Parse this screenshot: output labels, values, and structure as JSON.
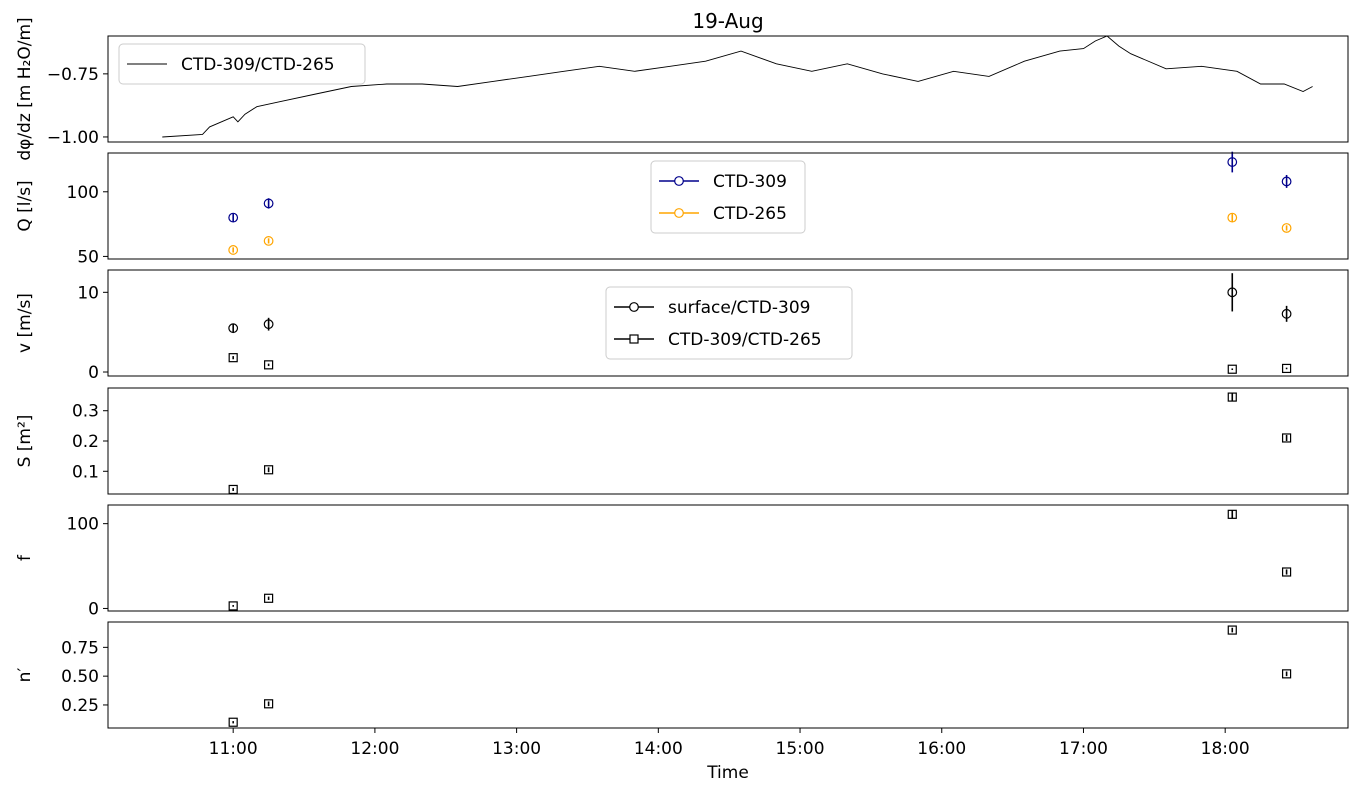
{
  "chart_data": {
    "title": "19-Aug",
    "xlabel": "Time",
    "x_ticks": [
      "11:00",
      "12:00",
      "13:00",
      "14:00",
      "15:00",
      "16:00",
      "17:00",
      "18:00"
    ],
    "xlim": [
      "10:07",
      "18:52"
    ],
    "panels": [
      {
        "id": "gradient",
        "type": "line",
        "ylabel": "dφ/dz [m H₂O/m]",
        "ylim": [
          -1.02,
          -0.6
        ],
        "yticks": [
          -1.0,
          -0.75
        ],
        "ytick_labels": [
          "−1.00",
          "−0.75"
        ],
        "legend_position": "upper-left",
        "series": [
          {
            "name": "CTD-309/CTD-265",
            "color": "#000000",
            "x": [
              "10:30",
              "10:47",
              "10:50",
              "11:00",
              "11:02",
              "11:05",
              "11:10",
              "11:20",
              "11:35",
              "11:50",
              "12:05",
              "12:20",
              "12:35",
              "12:50",
              "13:05",
              "13:20",
              "13:35",
              "13:50",
              "14:05",
              "14:20",
              "14:35",
              "14:50",
              "15:05",
              "15:20",
              "15:35",
              "15:50",
              "16:05",
              "16:20",
              "16:35",
              "16:50",
              "17:00",
              "17:05",
              "17:10",
              "17:15",
              "17:20",
              "17:35",
              "17:50",
              "18:05",
              "18:15",
              "18:25",
              "18:33",
              "18:37"
            ],
            "values": [
              -1.0,
              -0.99,
              -0.96,
              -0.92,
              -0.94,
              -0.91,
              -0.88,
              -0.86,
              -0.83,
              -0.8,
              -0.79,
              -0.79,
              -0.8,
              -0.78,
              -0.76,
              -0.74,
              -0.72,
              -0.74,
              -0.72,
              -0.7,
              -0.66,
              -0.71,
              -0.74,
              -0.71,
              -0.75,
              -0.78,
              -0.74,
              -0.76,
              -0.7,
              -0.66,
              -0.65,
              -0.62,
              -0.6,
              -0.64,
              -0.67,
              -0.73,
              -0.72,
              -0.74,
              -0.79,
              -0.79,
              -0.82,
              -0.8
            ]
          }
        ]
      },
      {
        "id": "discharge",
        "type": "errorbar",
        "ylabel": "Q [l/s]",
        "ylim": [
          48,
          130
        ],
        "yticks": [
          50,
          100
        ],
        "ytick_labels": [
          "50",
          "100"
        ],
        "legend_position": "upper-center",
        "series": [
          {
            "name": "CTD-309",
            "color": "#00008b",
            "marker": "circle",
            "x": [
              "11:00",
              "11:15",
              "18:03",
              "18:26"
            ],
            "values": [
              80,
              91,
              123,
              108
            ],
            "err": [
              3,
              4,
              8,
              5
            ]
          },
          {
            "name": "CTD-265",
            "color": "#ffa500",
            "marker": "circle",
            "x": [
              "11:00",
              "11:15",
              "18:03",
              "18:26"
            ],
            "values": [
              55,
              62,
              80,
              72
            ],
            "err": [
              2,
              2,
              3,
              2
            ]
          }
        ]
      },
      {
        "id": "velocity",
        "type": "errorbar",
        "ylabel": "v [m/s]",
        "ylim": [
          -0.5,
          12.8
        ],
        "yticks": [
          0,
          10
        ],
        "ytick_labels": [
          "0",
          "10"
        ],
        "legend_position": "center",
        "series": [
          {
            "name": "surface/CTD-309",
            "color": "#000000",
            "marker": "circle",
            "x": [
              "11:00",
              "11:15",
              "18:03",
              "18:26"
            ],
            "values": [
              5.5,
              6.0,
              10.0,
              7.3
            ],
            "err": [
              0.5,
              0.8,
              2.4,
              1.0
            ]
          },
          {
            "name": "CTD-309/CTD-265",
            "color": "#000000",
            "marker": "square",
            "x": [
              "11:00",
              "11:15",
              "18:03",
              "18:26"
            ],
            "values": [
              1.8,
              0.9,
              0.35,
              0.45
            ],
            "err": [
              0.2,
              0.15,
              0.1,
              0.1
            ]
          }
        ]
      },
      {
        "id": "area",
        "type": "errorbar",
        "ylabel": "S [m²]",
        "ylim": [
          0.025,
          0.375
        ],
        "yticks": [
          0.1,
          0.2,
          0.3
        ],
        "ytick_labels": [
          "0.1",
          "0.2",
          "0.3"
        ],
        "series": [
          {
            "name": "",
            "color": "#000000",
            "marker": "square",
            "x": [
              "11:00",
              "11:15",
              "18:03",
              "18:26"
            ],
            "values": [
              0.04,
              0.105,
              0.345,
              0.21
            ],
            "err": [
              0.005,
              0.008,
              0.012,
              0.01
            ]
          }
        ]
      },
      {
        "id": "friction",
        "type": "errorbar",
        "ylabel": "f",
        "ylim": [
          -3,
          122
        ],
        "yticks": [
          0,
          100
        ],
        "ytick_labels": [
          "0",
          "100"
        ],
        "series": [
          {
            "name": "",
            "color": "#000000",
            "marker": "square",
            "x": [
              "11:00",
              "11:15",
              "18:03",
              "18:26"
            ],
            "values": [
              3,
              12,
              111,
              43
            ],
            "err": [
              1,
              2,
              5,
              3
            ]
          }
        ]
      },
      {
        "id": "manning",
        "type": "errorbar",
        "ylabel": "n′",
        "ylim": [
          0.05,
          0.97
        ],
        "yticks": [
          0.25,
          0.5,
          0.75
        ],
        "ytick_labels": [
          "0.25",
          "0.50",
          "0.75"
        ],
        "series": [
          {
            "name": "",
            "color": "#000000",
            "marker": "square",
            "x": [
              "11:00",
              "11:15",
              "18:03",
              "18:26"
            ],
            "values": [
              0.1,
              0.26,
              0.9,
              0.52
            ],
            "err": [
              0.01,
              0.02,
              0.02,
              0.02
            ]
          }
        ]
      }
    ]
  }
}
